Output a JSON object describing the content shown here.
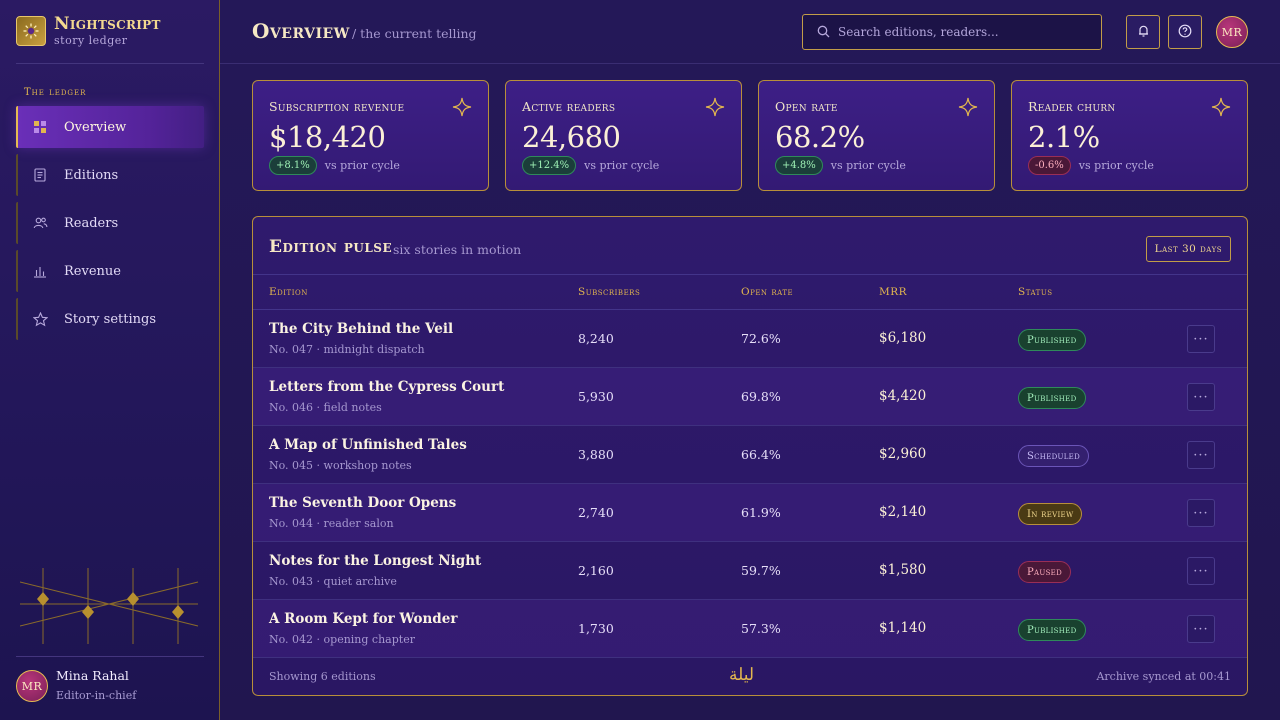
{
  "brand": {
    "name": "Nightscript",
    "subtitle": "story ledger",
    "logo_icon": "sun-star-icon"
  },
  "sidebar": {
    "section_label": "The ledger",
    "items": [
      {
        "label": "Overview",
        "icon": "grid-icon",
        "active": true
      },
      {
        "label": "Editions",
        "icon": "document-icon",
        "active": false
      },
      {
        "label": "Readers",
        "icon": "users-icon",
        "active": false
      },
      {
        "label": "Revenue",
        "icon": "bar-chart-icon",
        "active": false
      },
      {
        "label": "Story settings",
        "icon": "star-icon",
        "active": false
      }
    ],
    "user": {
      "initials": "MR",
      "name": "Mina Rahal",
      "role": "Editor-in-chief"
    }
  },
  "header": {
    "title": "Overview",
    "subtitle": "/ the current telling",
    "search_placeholder": "Search editions, readers...",
    "notifications_icon": "bell-icon",
    "help_icon": "question-icon",
    "avatar_initials": "MR"
  },
  "kpis": [
    {
      "label": "Subscription revenue",
      "value": "$18,420",
      "delta": "+8.1%",
      "direction": "up",
      "note": "vs prior cycle"
    },
    {
      "label": "Active readers",
      "value": "24,680",
      "delta": "+12.4%",
      "direction": "up",
      "note": "vs prior cycle"
    },
    {
      "label": "Open rate",
      "value": "68.2%",
      "delta": "+4.8%",
      "direction": "up",
      "note": "vs prior cycle"
    },
    {
      "label": "Reader churn",
      "value": "2.1%",
      "delta": "-0.6%",
      "direction": "down",
      "note": "vs prior cycle"
    }
  ],
  "panel": {
    "title": "Edition pulse",
    "subtitle": "six stories in motion",
    "range_label": "Last 30 days",
    "columns": [
      "Edition",
      "Subscribers",
      "Open rate",
      "MRR",
      "Status"
    ],
    "rows": [
      {
        "title": "The City Behind the Veil",
        "meta": "No. 047 · midnight dispatch",
        "subscribers": "8,240",
        "open_rate": "72.6%",
        "mrr": "$6,180",
        "status": "Published",
        "status_kind": "published"
      },
      {
        "title": "Letters from the Cypress Court",
        "meta": "No. 046 · field notes",
        "subscribers": "5,930",
        "open_rate": "69.8%",
        "mrr": "$4,420",
        "status": "Published",
        "status_kind": "published"
      },
      {
        "title": "A Map of Unfinished Tales",
        "meta": "No. 045 · workshop notes",
        "subscribers": "3,880",
        "open_rate": "66.4%",
        "mrr": "$2,960",
        "status": "Scheduled",
        "status_kind": "scheduled"
      },
      {
        "title": "The Seventh Door Opens",
        "meta": "No. 044 · reader salon",
        "subscribers": "2,740",
        "open_rate": "61.9%",
        "mrr": "$2,140",
        "status": "In review",
        "status_kind": "review"
      },
      {
        "title": "Notes for the Longest Night",
        "meta": "No. 043 · quiet archive",
        "subscribers": "2,160",
        "open_rate": "59.7%",
        "mrr": "$1,580",
        "status": "Paused",
        "status_kind": "paused"
      },
      {
        "title": "A Room Kept for Wonder",
        "meta": "No. 042 · opening chapter",
        "subscribers": "1,730",
        "open_rate": "57.3%",
        "mrr": "$1,140",
        "status": "Published",
        "status_kind": "published"
      }
    ],
    "footer_left": "Showing 6 editions",
    "footer_mid": "ليلة",
    "footer_right": "Archive synced at 00:41"
  },
  "colors": {
    "accent_gold": "#e2b64f",
    "bg": "#21164f",
    "active_nav": "#6a2fb8"
  }
}
